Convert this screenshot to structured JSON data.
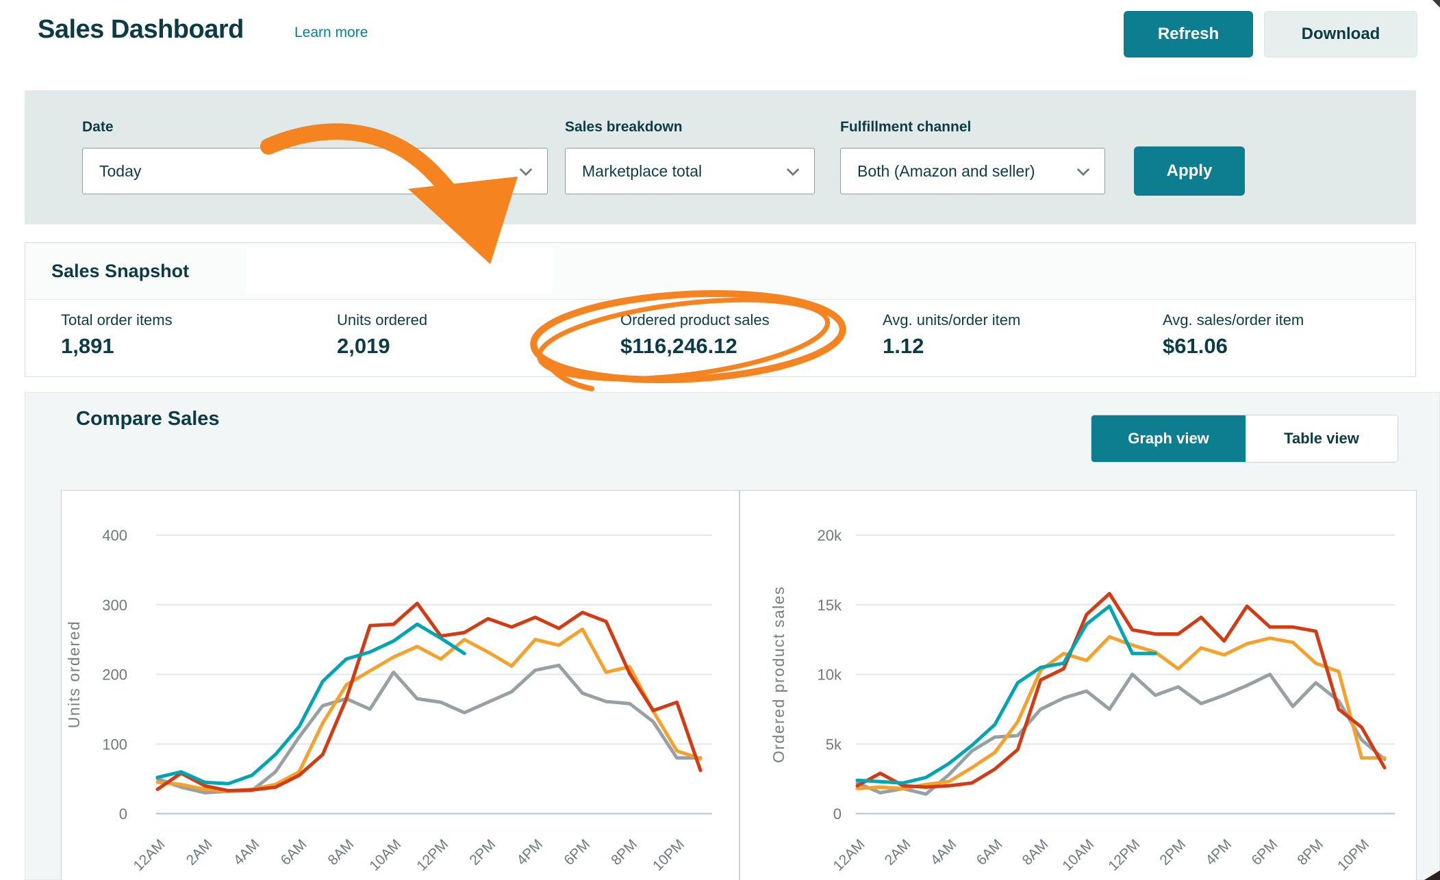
{
  "header": {
    "title": "Sales Dashboard",
    "learn_more": "Learn more",
    "refresh_label": "Refresh",
    "download_label": "Download"
  },
  "filters": {
    "date": {
      "label": "Date",
      "value": "Today"
    },
    "sales_breakdown": {
      "label": "Sales breakdown",
      "value": "Marketplace total"
    },
    "fulfillment_channel": {
      "label": "Fulfillment channel",
      "value": "Both (Amazon and seller)"
    },
    "apply_label": "Apply"
  },
  "snapshot": {
    "title": "Sales Snapshot",
    "stats": [
      {
        "label": "Total order items",
        "value": "1,891"
      },
      {
        "label": "Units ordered",
        "value": "2,019"
      },
      {
        "label": "Ordered product sales",
        "value": "$116,246.12",
        "highlighted": true
      },
      {
        "label": "Avg. units/order item",
        "value": "1.12"
      },
      {
        "label": "Avg. sales/order item",
        "value": "$61.06"
      }
    ]
  },
  "compare": {
    "title": "Compare Sales",
    "graph_view_label": "Graph view",
    "table_view_label": "Table view",
    "selected_view": "Graph view"
  },
  "colors": {
    "accent_teal": "#0d7e8f",
    "link_teal": "#008296",
    "dark_text": "#0b3b44",
    "filter_bar_bg": "#e2e9e9",
    "annotation_orange": "#f5831f",
    "series_teal": "#00a4b3",
    "series_red": "#d13c14",
    "series_orange": "#f5a12b",
    "series_gray": "#97a1a4"
  },
  "chart_data": [
    {
      "type": "line",
      "title": "",
      "ylabel": "Units ordered",
      "xlabel": "",
      "ylim": [
        0,
        400
      ],
      "ytick_values": [
        0,
        100,
        200,
        300,
        400
      ],
      "ytick_labels": [
        "0",
        "100",
        "200",
        "300",
        "400"
      ],
      "xtick_every": 2,
      "grid": true,
      "legend": "none",
      "categories": [
        "12AM",
        "1AM",
        "2AM",
        "3AM",
        "4AM",
        "5AM",
        "6AM",
        "7AM",
        "8AM",
        "9AM",
        "10AM",
        "11AM",
        "12PM",
        "1PM",
        "2PM",
        "3PM",
        "4PM",
        "5PM",
        "6PM",
        "7PM",
        "8PM",
        "9PM",
        "10PM",
        "11PM"
      ],
      "series": [
        {
          "name": "gray",
          "color": "#97a1a4",
          "values": [
            50,
            38,
            30,
            32,
            33,
            60,
            110,
            155,
            165,
            150,
            203,
            165,
            160,
            145,
            160,
            175,
            206,
            213,
            173,
            161,
            158,
            132,
            80,
            80
          ]
        },
        {
          "name": "orange",
          "color": "#f5a12b",
          "values": [
            45,
            42,
            35,
            32,
            35,
            42,
            60,
            130,
            185,
            205,
            225,
            240,
            222,
            250,
            232,
            212,
            250,
            242,
            265,
            203,
            211,
            147,
            90,
            79
          ]
        },
        {
          "name": "red",
          "color": "#d13c14",
          "values": [
            35,
            58,
            40,
            33,
            34,
            38,
            55,
            85,
            165,
            270,
            272,
            302,
            255,
            260,
            280,
            268,
            282,
            266,
            289,
            276,
            201,
            148,
            160,
            62
          ]
        },
        {
          "name": "teal",
          "color": "#00a4b3",
          "values": [
            52,
            60,
            45,
            43,
            55,
            85,
            125,
            190,
            222,
            232,
            248,
            272,
            252,
            230
          ]
        }
      ]
    },
    {
      "type": "line",
      "title": "",
      "ylabel": "Ordered product sales",
      "xlabel": "",
      "ylim": [
        0,
        20000
      ],
      "ytick_values": [
        0,
        5000,
        10000,
        15000,
        20000
      ],
      "ytick_labels": [
        "0",
        "5k",
        "10k",
        "15k",
        "20k"
      ],
      "xtick_every": 2,
      "grid": true,
      "legend": "none",
      "categories": [
        "12AM",
        "1AM",
        "2AM",
        "3AM",
        "4AM",
        "5AM",
        "6AM",
        "7AM",
        "8AM",
        "9AM",
        "10AM",
        "11AM",
        "12PM",
        "1PM",
        "2PM",
        "3PM",
        "4PM",
        "5PM",
        "6PM",
        "7PM",
        "8PM",
        "9PM",
        "10PM",
        "11PM"
      ],
      "series": [
        {
          "name": "gray",
          "color": "#97a1a4",
          "values": [
            2200,
            1500,
            1800,
            1400,
            2800,
            4500,
            5500,
            5600,
            7500,
            8300,
            8800,
            7500,
            10000,
            8500,
            9100,
            7900,
            8500,
            9200,
            10000,
            7700,
            9400,
            8100,
            5300,
            3900
          ]
        },
        {
          "name": "orange",
          "color": "#f5a12b",
          "values": [
            1800,
            1900,
            1800,
            2100,
            2300,
            3300,
            4400,
            6600,
            10300,
            11500,
            11000,
            12700,
            12100,
            11600,
            10400,
            11900,
            11400,
            12200,
            12600,
            12300,
            10800,
            10200,
            4000,
            4000
          ]
        },
        {
          "name": "red",
          "color": "#d13c14",
          "values": [
            2000,
            2900,
            2000,
            1900,
            2000,
            2200,
            3200,
            4600,
            9600,
            10400,
            14300,
            15800,
            13200,
            12900,
            12900,
            14100,
            12400,
            14900,
            13400,
            13400,
            13100,
            7500,
            6200,
            3300
          ]
        },
        {
          "name": "teal",
          "color": "#00a4b3",
          "values": [
            2400,
            2300,
            2200,
            2600,
            3600,
            4900,
            6400,
            9400,
            10500,
            10800,
            13600,
            14900,
            11500,
            11500
          ]
        }
      ]
    }
  ]
}
